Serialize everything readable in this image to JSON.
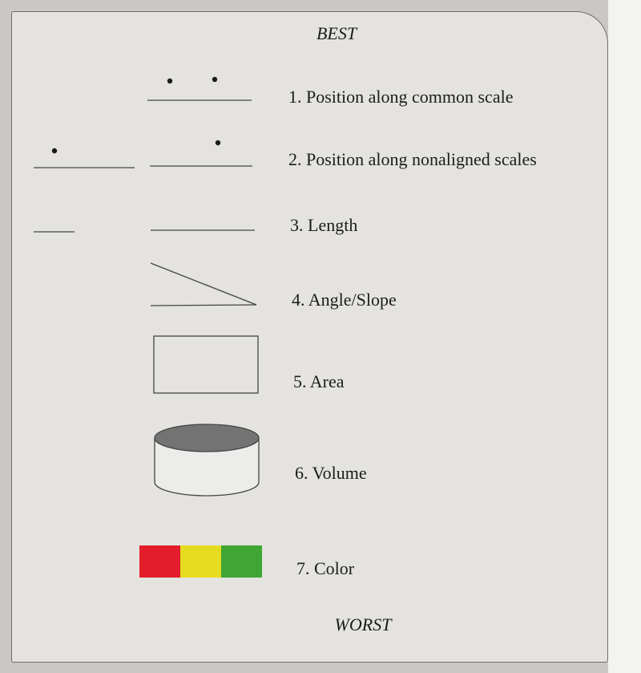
{
  "header": {
    "best_label": "BEST"
  },
  "footer": {
    "worst_label": "WORST"
  },
  "rankings": [
    {
      "rank": 1,
      "label": "1. Position along common scale",
      "icon": "position-common-scale-icon"
    },
    {
      "rank": 2,
      "label": "2. Position along nonaligned scales",
      "icon": "position-nonaligned-scales-icon"
    },
    {
      "rank": 3,
      "label": "3. Length",
      "icon": "length-icon"
    },
    {
      "rank": 4,
      "label": "4. Angle/Slope",
      "icon": "angle-slope-icon"
    },
    {
      "rank": 5,
      "label": "5. Area",
      "icon": "area-icon"
    },
    {
      "rank": 6,
      "label": "6. Volume",
      "icon": "volume-icon"
    },
    {
      "rank": 7,
      "label": "7. Color",
      "icon": "color-swatch-icon"
    }
  ],
  "colors": {
    "swatch_red": "#e31d2b",
    "swatch_yellow": "#e6dc1f",
    "swatch_green": "#3fa533",
    "cylinder_top": "#737373"
  }
}
